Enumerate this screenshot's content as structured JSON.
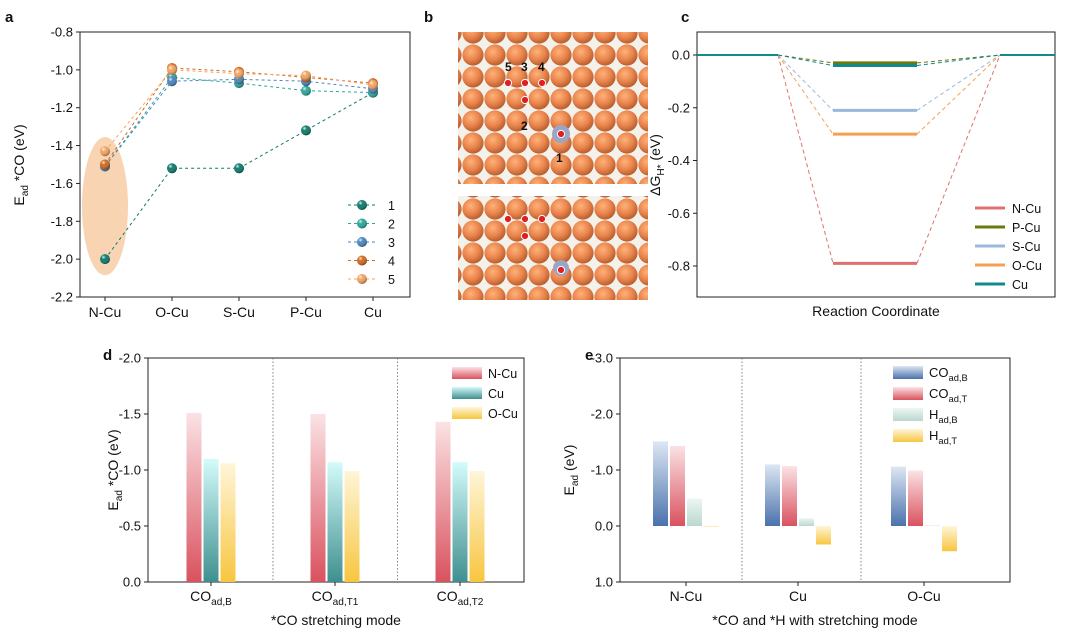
{
  "panels": {
    "a": "a",
    "b": "b",
    "c": "c",
    "d": "d",
    "e": "e"
  },
  "chart_data": [
    {
      "id": "a",
      "type": "line",
      "categories": [
        "N-Cu",
        "O-Cu",
        "S-Cu",
        "P-Cu",
        "Cu"
      ],
      "xlabel": "",
      "ylabel_main": "E",
      "ylabel_sub": "ad",
      "ylabel_rest": " *CO (eV)",
      "ylim": [
        -2.2,
        -0.8
      ],
      "yticks": [
        -0.8,
        -1.0,
        -1.2,
        -1.4,
        -1.6,
        -1.8,
        -2.0,
        -2.2
      ],
      "ytick_labels": [
        "-0.8",
        "-1.0",
        "-1.2",
        "-1.4",
        "-1.6",
        "-1.8",
        "-2.0",
        "-2.2"
      ],
      "series": [
        {
          "name": "1",
          "color": "#0e7a6c",
          "values": [
            -2.0,
            -1.52,
            -1.52,
            -1.32,
            -1.12
          ]
        },
        {
          "name": "2",
          "color": "#2aa99a",
          "values": [
            -1.51,
            -1.04,
            -1.07,
            -1.11,
            -1.12
          ]
        },
        {
          "name": "3",
          "color": "#4a86c0",
          "values": [
            -1.51,
            -1.06,
            -1.05,
            -1.06,
            -1.1
          ]
        },
        {
          "name": "4",
          "color": "#d2691e",
          "values": [
            -1.5,
            -0.99,
            -1.01,
            -1.04,
            -1.07
          ]
        },
        {
          "name": "5",
          "color": "#f4a460",
          "values": [
            -1.43,
            -1.0,
            -1.02,
            -1.03,
            -1.08
          ]
        }
      ]
    },
    {
      "id": "c",
      "type": "line",
      "xlabel": "Reaction Coordinate",
      "ylabel": "ΔG",
      "ylabel_sub": "H*",
      "ylabel_rest": " (eV)",
      "ylim": [
        -0.9,
        0.05
      ],
      "yticks": [
        0.0,
        -0.2,
        -0.4,
        -0.6,
        -0.8
      ],
      "ytick_labels": [
        "0.0",
        "-0.2",
        "-0.4",
        "-0.6",
        "-0.8"
      ],
      "series": [
        {
          "name": "N-Cu",
          "color": "#e07070",
          "values": [
            0.0,
            -0.79,
            0.0
          ]
        },
        {
          "name": "P-Cu",
          "color": "#6b7a10",
          "values": [
            0.0,
            -0.03,
            0.0
          ]
        },
        {
          "name": "S-Cu",
          "color": "#9ab8dc",
          "values": [
            0.0,
            -0.21,
            0.0
          ]
        },
        {
          "name": "O-Cu",
          "color": "#f5a050",
          "values": [
            0.0,
            -0.3,
            0.0
          ]
        },
        {
          "name": "Cu",
          "color": "#128a8a",
          "values": [
            0.0,
            -0.04,
            0.0
          ]
        }
      ]
    },
    {
      "id": "d",
      "type": "bar",
      "categories": [
        "CO",
        "CO",
        "CO"
      ],
      "category_subs": [
        "ad,B",
        "ad,T1",
        "ad,T2"
      ],
      "xlabel": "*CO stretching mode",
      "ylabel_main": "E",
      "ylabel_sub": "ad",
      "ylabel_rest": " *CO (eV)",
      "ylim": [
        -2.0,
        0.0
      ],
      "yticks": [
        -2.0,
        -1.5,
        -1.0,
        -0.5,
        0.0
      ],
      "ytick_labels": [
        "-2.0",
        "-1.5",
        "-1.0",
        "-0.5",
        "0.0"
      ],
      "series": [
        {
          "name": "N-Cu",
          "c1": "#d9525f",
          "c2": "#fbe2e4",
          "values": [
            -1.51,
            -1.5,
            -1.43
          ]
        },
        {
          "name": "Cu",
          "c1": "#3f8f8f",
          "c2": "#d4fbfb",
          "values": [
            -1.1,
            -1.07,
            -1.07
          ]
        },
        {
          "name": "O-Cu",
          "c1": "#f7c640",
          "c2": "#fff5d8",
          "values": [
            -1.06,
            -0.99,
            -0.99
          ]
        }
      ]
    },
    {
      "id": "e",
      "type": "bar",
      "categories": [
        "N-Cu",
        "Cu",
        "O-Cu"
      ],
      "xlabel": "*CO and *H with stretching mode",
      "ylabel_main": "E",
      "ylabel_sub": "ad",
      "ylabel_rest": " (eV)",
      "ylim": [
        1.0,
        -3.0
      ],
      "yticks": [
        -3.0,
        -2.0,
        -1.0,
        0.0,
        1.0
      ],
      "ytick_labels": [
        "-3.0",
        "-2.0",
        "-1.0",
        "0.0",
        "1.0"
      ],
      "series": [
        {
          "name": "CO",
          "sub": "ad,B",
          "c1": "#4a72ad",
          "c2": "#dde6f3",
          "values": [
            -1.51,
            -1.1,
            -1.06
          ]
        },
        {
          "name": "CO",
          "sub": "ad,T",
          "c1": "#d9525f",
          "c2": "#fbe2e4",
          "values": [
            -1.43,
            -1.07,
            -0.99
          ]
        },
        {
          "name": "H",
          "sub": "ad,B",
          "c1": "#b9d8cf",
          "c2": "#edf6f3",
          "values": [
            -0.49,
            -0.14,
            -0.01
          ]
        },
        {
          "name": "H",
          "sub": "ad,T",
          "c1": "#f7c640",
          "c2": "#fff5d8",
          "values": [
            0.01,
            0.33,
            0.45
          ]
        }
      ]
    }
  ],
  "panel_b": {
    "site_labels": [
      "5",
      "3",
      "4",
      "2",
      "1"
    ]
  }
}
